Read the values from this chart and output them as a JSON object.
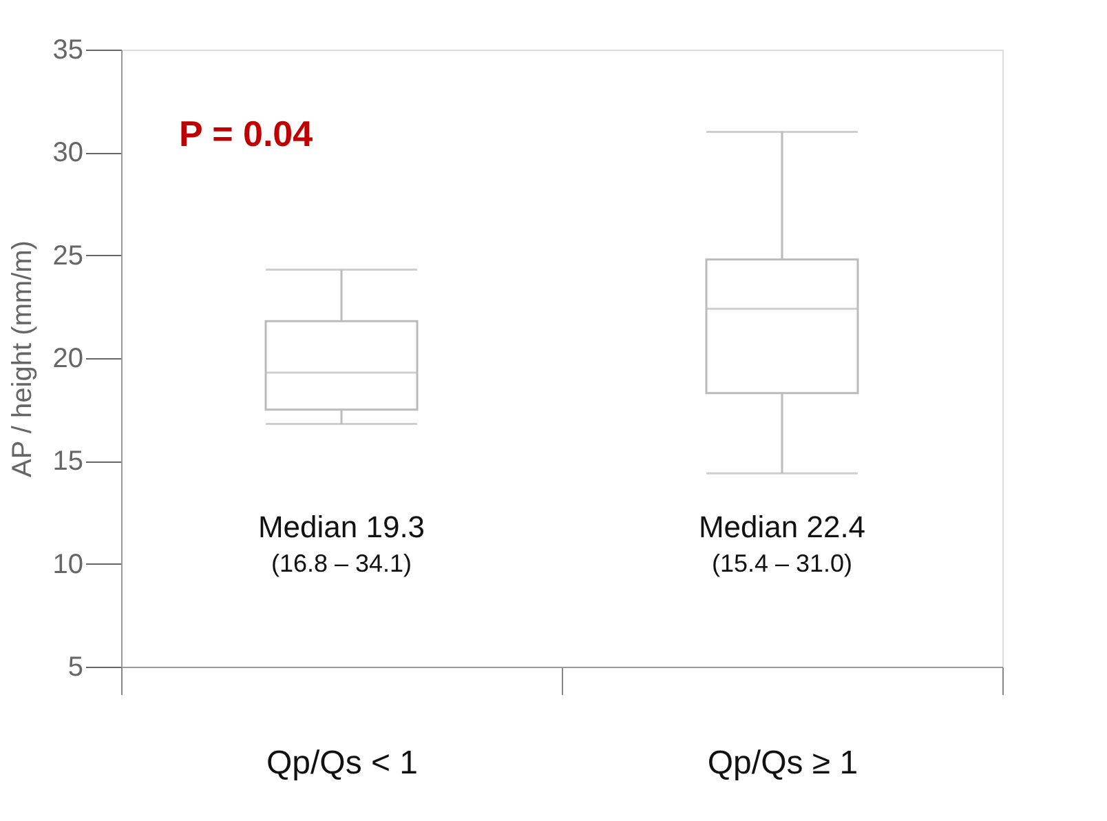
{
  "chart_data": {
    "type": "box",
    "ylabel": "AP / height (mm/m)",
    "categories": [
      "Qp/Qs < 1",
      "Qp/Qs ≥ 1"
    ],
    "boxes": [
      {
        "low": 16.8,
        "q1": 17.5,
        "median": 19.3,
        "q3": 21.8,
        "high": 24.3
      },
      {
        "low": 14.4,
        "q1": 18.3,
        "median": 22.4,
        "q3": 24.8,
        "high": 31.0
      }
    ],
    "color": "#bbbbbb",
    "ylim": [
      5,
      35
    ],
    "yticks": [
      5,
      10,
      15,
      20,
      25,
      30,
      35
    ],
    "grid": false,
    "annotations": [
      "P = 0.04",
      "Median 19.3",
      "(16.8 – 34.1)",
      "Median  22.4",
      "(15.4 – 31.0)"
    ]
  }
}
